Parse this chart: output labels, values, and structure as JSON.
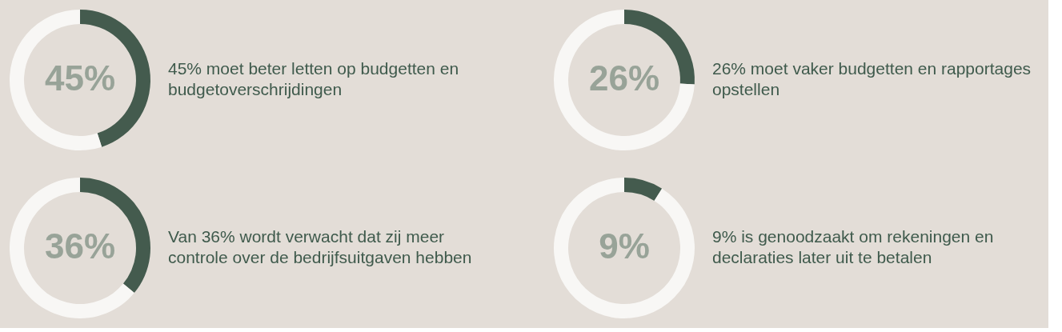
{
  "chart_data": [
    {
      "type": "donut",
      "title": "45% moet beter letten op budgetten en budgetoverschrijdingen",
      "categories": [
        null,
        null
      ],
      "values": [
        45,
        55
      ],
      "colors": [
        "#445b4e",
        "#f8f7f5"
      ],
      "value_labels": [
        "45%",
        null
      ]
    },
    {
      "type": "donut",
      "title": "26% moet vaker budgetten en rapportages opstellen",
      "categories": [
        null,
        null
      ],
      "values": [
        26,
        74
      ],
      "colors": [
        "#445b4e",
        "#f8f7f5"
      ],
      "value_labels": [
        "26%",
        null
      ]
    },
    {
      "type": "donut",
      "title": "Van 36% wordt verwacht dat zij meer controle over de bedrijfsuitgaven hebben",
      "categories": [
        null,
        null
      ],
      "values": [
        36,
        64
      ],
      "colors": [
        "#445b4e",
        "#f8f7f5"
      ],
      "value_labels": [
        "36%",
        null
      ]
    },
    {
      "type": "donut",
      "title": "9% is genoodzaakt om rekeningen en declaraties later uit te betalen",
      "categories": [
        null,
        null
      ],
      "values": [
        9,
        91
      ],
      "colors": [
        "#445b4e",
        "#f8f7f5"
      ],
      "value_labels": [
        "9%",
        null
      ]
    }
  ]
}
